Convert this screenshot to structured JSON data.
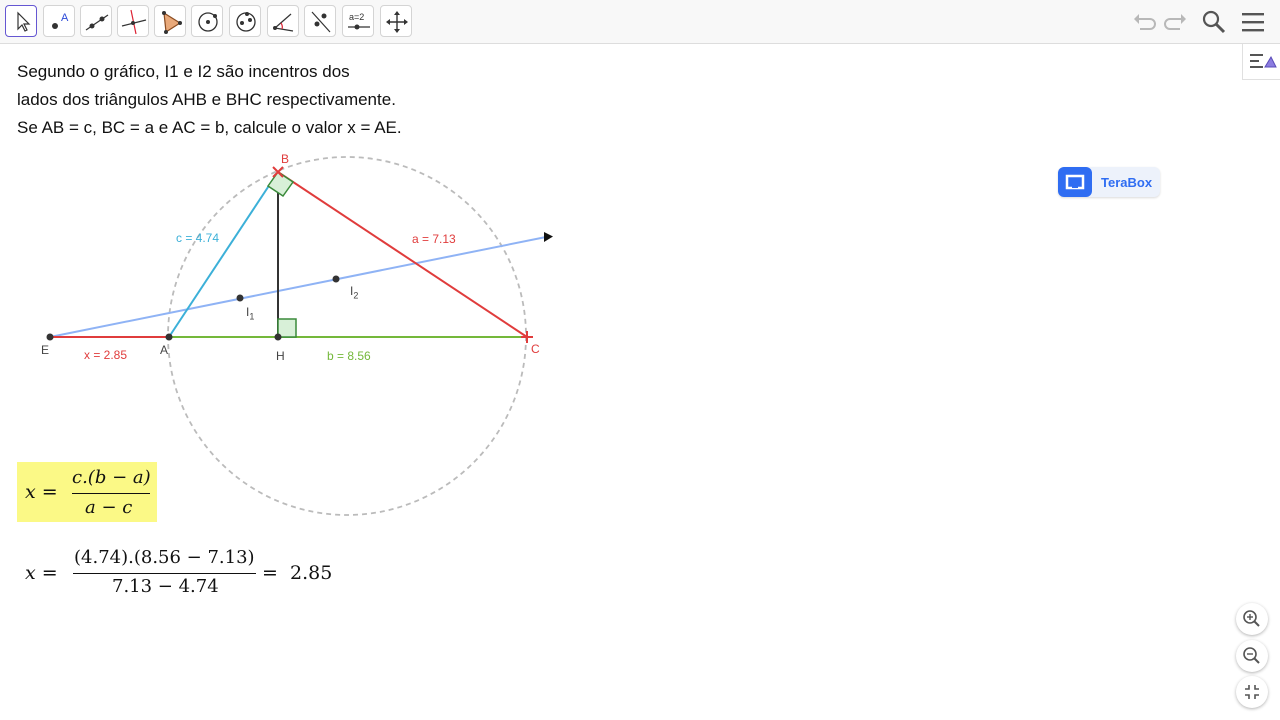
{
  "toolbar": {
    "tools": [
      {
        "name": "move-tool-icon",
        "selected": true
      },
      {
        "name": "point-tool-icon",
        "glyph": "A"
      },
      {
        "name": "line-tool-icon"
      },
      {
        "name": "perpendicular-line-tool-icon"
      },
      {
        "name": "polygon-tool-icon"
      },
      {
        "name": "circle-tool-icon"
      },
      {
        "name": "ellipse-tool-icon"
      },
      {
        "name": "angle-tool-icon"
      },
      {
        "name": "reflect-tool-icon"
      },
      {
        "name": "slider-tool-icon",
        "glyph": "a=2"
      },
      {
        "name": "move-view-tool-icon"
      }
    ],
    "right_controls": [
      "undo-icon",
      "redo-icon",
      "search-icon",
      "menu-icon"
    ]
  },
  "problem": {
    "line1": "Segundo o gráfico, I1 e I2 são incentros dos",
    "line2": "lados dos triângulos AHB e BHC respectivamente.",
    "line3": "Se AB = c, BC = a e AC = b, calcule o valor x = AE."
  },
  "figure": {
    "points": {
      "B": "B",
      "E": "E",
      "A": "A",
      "H": "H",
      "C": "C",
      "I1": "I",
      "I1_sub": "1",
      "I2": "I",
      "I2_sub": "2"
    },
    "segments": {
      "c": "c = 4.74",
      "a": "a = 7.13",
      "x": "x = 2.85",
      "b": "b = 8.56"
    },
    "colors": {
      "c_segment": "#3cb0d8",
      "a_segment": "#e03c3c",
      "b_segment": "#74b83a",
      "x_segment": "#e03c3c",
      "incenter_line": "#8fb3f5",
      "altitude": "#333333",
      "circle": "#bbbbbb",
      "right_angle_fill": "#d8f0d8",
      "formula_highlight": "#fbf986"
    }
  },
  "formula_general": {
    "lhs": "x =",
    "numerator": "c.(b − a)",
    "denominator": "a − c"
  },
  "formula_numeric": {
    "lhs": "x =",
    "numerator": "(4.74).(8.56  − 7.13)",
    "denominator": "7.13  − 4.74",
    "equals": "=",
    "result": "2.85"
  },
  "terabox": {
    "label": "TeraBox"
  },
  "view_controls": [
    "zoom-in-icon",
    "zoom-out-icon",
    "exit-fullscreen-icon"
  ]
}
